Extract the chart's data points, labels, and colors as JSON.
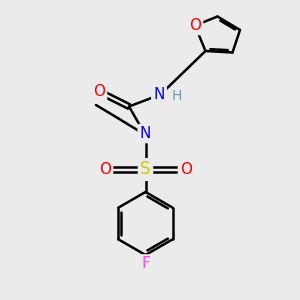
{
  "bg_color": "#ebebeb",
  "atom_colors": {
    "C": "#000000",
    "N": "#0000ff",
    "O": "#ff0000",
    "S": "#cccc00",
    "F": "#ff44ff",
    "H": "#6699aa"
  },
  "bond_color": "#000000",
  "bond_width": 1.8,
  "font_size_atom": 10,
  "figsize": [
    3.0,
    3.0
  ],
  "dpi": 100
}
